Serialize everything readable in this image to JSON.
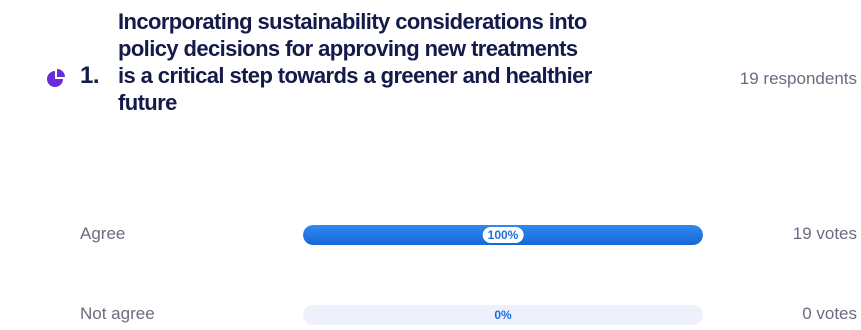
{
  "question": {
    "icon": "pie-chart-icon",
    "icon_color": "#6a2bd9",
    "number": "1.",
    "title": "Incorporating sustainability considerations into policy decisions for approving new treatments is a critical step towards a greener and healthier future",
    "respondents": "19 respondents"
  },
  "options": [
    {
      "label": "Agree",
      "percent_label": "100%",
      "percent": 100,
      "votes": "19 votes"
    },
    {
      "label": "Not agree",
      "percent_label": "0%",
      "percent": 0,
      "votes": "0 votes"
    }
  ],
  "colors": {
    "title": "#141a4a",
    "muted_text": "#6b6b80",
    "bar_fill": "#1f6fe0",
    "bar_track": "#eef1fb"
  }
}
